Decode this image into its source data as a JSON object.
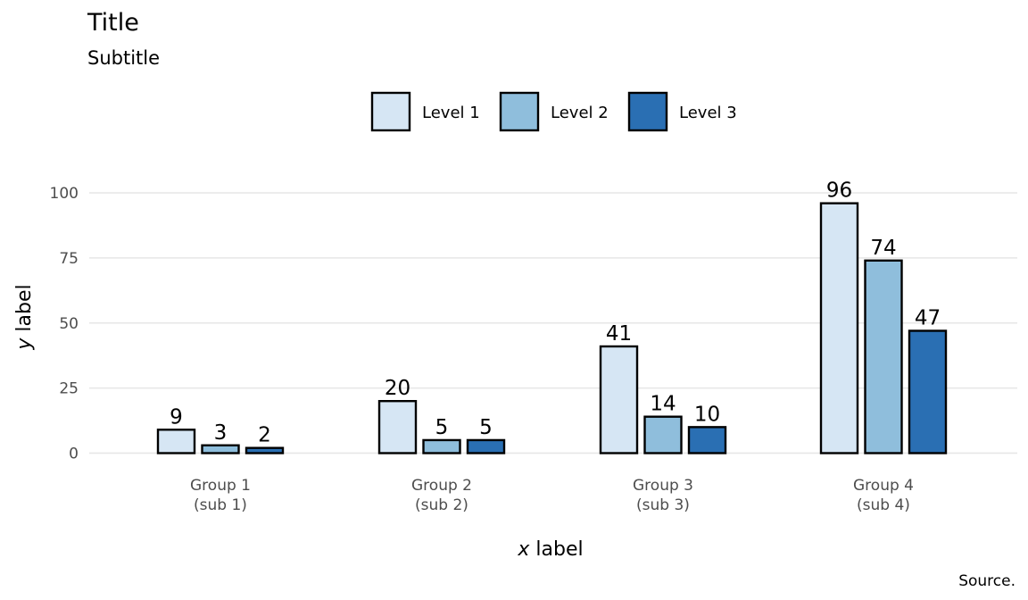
{
  "chart_data": {
    "type": "bar",
    "title": "Title",
    "subtitle": "Subtitle",
    "xlabel_italic": "x",
    "xlabel_rest": "label",
    "ylabel_italic": "y",
    "ylabel_rest": "label",
    "caption": "Source.",
    "categories": [
      [
        "Group 1",
        "(sub 1)"
      ],
      [
        "Group 2",
        "(sub 2)"
      ],
      [
        "Group 3",
        "(sub 3)"
      ],
      [
        "Group 4",
        "(sub 4)"
      ]
    ],
    "series": [
      {
        "name": "Level 1",
        "color": "#d6e6f4",
        "values": [
          9,
          20,
          41,
          96
        ]
      },
      {
        "name": "Level 2",
        "color": "#8fbedc",
        "values": [
          3,
          5,
          14,
          74
        ]
      },
      {
        "name": "Level 3",
        "color": "#2a6fb3",
        "values": [
          2,
          5,
          10,
          47
        ]
      }
    ],
    "ylim": [
      0,
      100
    ],
    "yticks": [
      0,
      25,
      50,
      75,
      100
    ],
    "grid": true,
    "legend_position": "top"
  }
}
